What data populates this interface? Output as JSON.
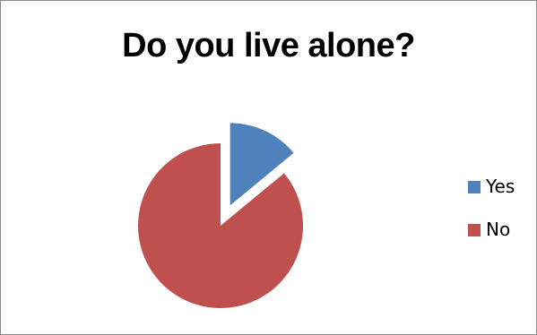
{
  "chart_data": {
    "type": "pie",
    "title": "Do you live alone?",
    "categories": [
      "Yes",
      "No"
    ],
    "values": [
      14,
      86
    ],
    "exploded": [
      "Yes"
    ],
    "colors": [
      "#4f81bd",
      "#c0504d"
    ],
    "legend_position": "right"
  }
}
